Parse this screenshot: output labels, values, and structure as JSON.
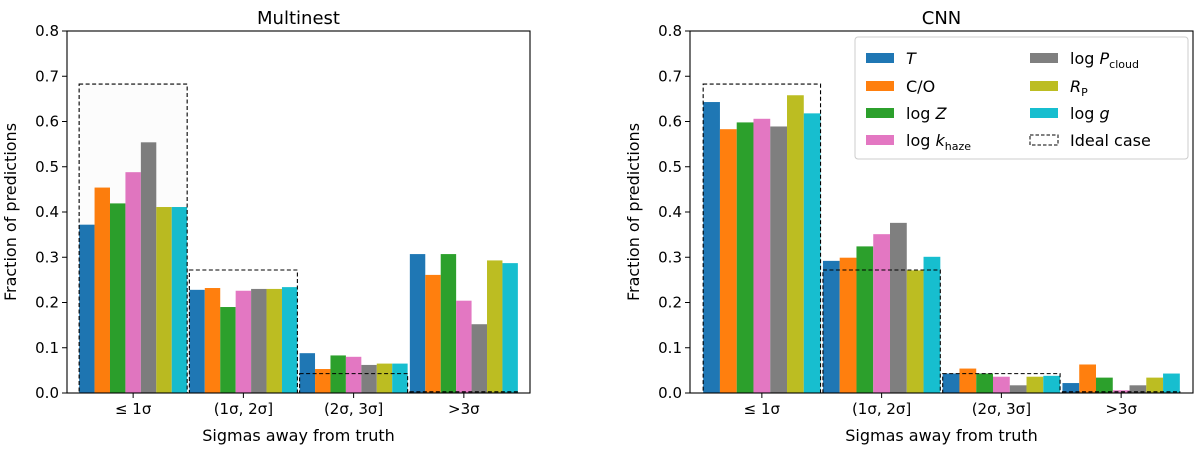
{
  "chart_data": [
    {
      "type": "bar",
      "title": "Multinest",
      "xlabel": "Sigmas away from truth",
      "ylabel": "Fraction of predictions",
      "ylim": [
        0,
        0.8
      ],
      "yticks": [
        "0.0",
        "0.1",
        "0.2",
        "0.3",
        "0.4",
        "0.5",
        "0.6",
        "0.7",
        "0.8"
      ],
      "categories": [
        "≤ 1σ",
        "(1σ, 2σ]",
        "(2σ, 3σ]",
        ">3σ"
      ],
      "series": [
        {
          "name": "T",
          "values": [
            0.372,
            0.228,
            0.088,
            0.307
          ]
        },
        {
          "name": "C/O",
          "values": [
            0.454,
            0.232,
            0.053,
            0.261
          ]
        },
        {
          "name": "log Z",
          "values": [
            0.419,
            0.19,
            0.083,
            0.307
          ]
        },
        {
          "name": "log k_haze",
          "values": [
            0.488,
            0.226,
            0.08,
            0.204
          ]
        },
        {
          "name": "log P_cloud",
          "values": [
            0.554,
            0.23,
            0.062,
            0.152
          ]
        },
        {
          "name": "R_P",
          "values": [
            0.411,
            0.23,
            0.065,
            0.293
          ]
        },
        {
          "name": "log g",
          "values": [
            0.411,
            0.234,
            0.065,
            0.287
          ]
        }
      ],
      "ideal_case": [
        0.6827,
        0.2718,
        0.0428,
        0.0027
      ]
    },
    {
      "type": "bar",
      "title": "CNN",
      "xlabel": "Sigmas away from truth",
      "ylabel": "Fraction of predictions",
      "ylim": [
        0,
        0.8
      ],
      "yticks": [
        "0.0",
        "0.1",
        "0.2",
        "0.3",
        "0.4",
        "0.5",
        "0.6",
        "0.7",
        "0.8"
      ],
      "categories": [
        "≤ 1σ",
        "(1σ, 2σ]",
        "(2σ, 3σ]",
        ">3σ"
      ],
      "series": [
        {
          "name": "T",
          "values": [
            0.643,
            0.292,
            0.043,
            0.022
          ]
        },
        {
          "name": "C/O",
          "values": [
            0.583,
            0.299,
            0.054,
            0.063
          ]
        },
        {
          "name": "log Z",
          "values": [
            0.598,
            0.324,
            0.043,
            0.034
          ]
        },
        {
          "name": "log k_haze",
          "values": [
            0.606,
            0.351,
            0.036,
            0.006
          ]
        },
        {
          "name": "log P_cloud",
          "values": [
            0.589,
            0.376,
            0.017,
            0.017
          ]
        },
        {
          "name": "R_P",
          "values": [
            0.658,
            0.271,
            0.036,
            0.034
          ]
        },
        {
          "name": "log g",
          "values": [
            0.618,
            0.301,
            0.038,
            0.043
          ]
        }
      ],
      "ideal_case": [
        0.6827,
        0.2718,
        0.0428,
        0.0027
      ]
    }
  ],
  "legend": {
    "location": "upper-right of CNN panel",
    "entries": [
      {
        "base": "",
        "var": "T",
        "sub": "",
        "color": "#1f77b4"
      },
      {
        "base": "C/O",
        "var": "",
        "sub": "",
        "color": "#ff7f0e"
      },
      {
        "base": "log ",
        "var": "Z",
        "sub": "",
        "color": "#2ca02c"
      },
      {
        "base": "log ",
        "var": "k",
        "sub": "haze",
        "color": "#e377c2"
      },
      {
        "base": "log ",
        "var": "P",
        "sub": "cloud",
        "color": "#7f7f7f"
      },
      {
        "base": "",
        "var": "R",
        "sub": "P",
        "color": "#bcbd22"
      },
      {
        "base": "log ",
        "var": "g",
        "sub": "",
        "color": "#17becf"
      },
      {
        "base": "Ideal case",
        "var": "",
        "sub": "",
        "color": "",
        "dashed": true
      }
    ]
  },
  "colors": [
    "#1f77b4",
    "#ff7f0e",
    "#2ca02c",
    "#e377c2",
    "#7f7f7f",
    "#bcbd22",
    "#17becf"
  ]
}
